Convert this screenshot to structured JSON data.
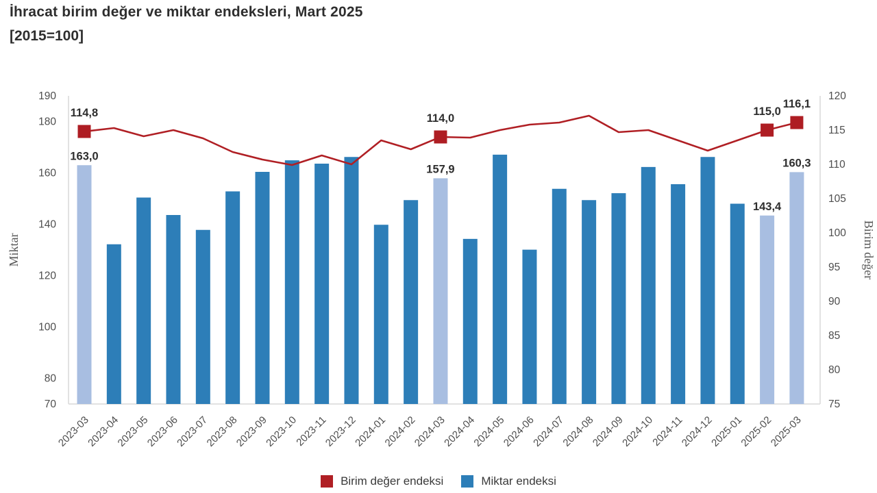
{
  "title": {
    "line1": "İhracat birim değer ve miktar endeksleri, Mart 2025",
    "line2": "[2015=100]"
  },
  "legend": [
    {
      "label": "Birim değer endeksi",
      "color": "#b01f24"
    },
    {
      "label": "Miktar endeksi",
      "color": "#2d7eb8"
    }
  ],
  "colors": {
    "bar": "#2d7eb8",
    "bar_highlight": "#a8bee1",
    "line": "#b01f24",
    "marker": "#ae1d23",
    "axis_line": "#d9d9d9",
    "tick_text": "#4d4d4d",
    "axis_title": "#595959",
    "data_label": "#2e2e2e"
  },
  "chart_data": {
    "type": "combo-bar-line",
    "title": "İhracat birim değer ve miktar endeksleri, Mart 2025 [2015=100]",
    "categories": [
      "2023-03",
      "2023-04",
      "2023-05",
      "2023-06",
      "2023-07",
      "2023-08",
      "2023-09",
      "2023-10",
      "2023-11",
      "2023-12",
      "2024-01",
      "2024-02",
      "2024-03",
      "2024-04",
      "2024-05",
      "2024-06",
      "2024-07",
      "2024-08",
      "2024-09",
      "2024-10",
      "2024-11",
      "2024-12",
      "2025-01",
      "2025-02",
      "2025-03"
    ],
    "series": [
      {
        "name": "Miktar endeksi",
        "type": "bar",
        "axis": "left",
        "values": [
          163.0,
          132.2,
          150.4,
          143.6,
          137.8,
          152.8,
          160.4,
          164.9,
          163.6,
          166.2,
          139.8,
          149.4,
          157.9,
          134.3,
          167.1,
          130.1,
          153.8,
          149.4,
          152.1,
          162.3,
          155.6,
          166.2,
          148.0,
          143.4,
          160.3
        ],
        "highlighted_indices": [
          0,
          12,
          23,
          24
        ]
      },
      {
        "name": "Birim değer endeksi",
        "type": "line",
        "axis": "right",
        "values": [
          114.8,
          115.3,
          114.1,
          115.0,
          113.8,
          111.8,
          110.7,
          109.9,
          111.3,
          110.0,
          113.5,
          112.2,
          114.0,
          113.9,
          115.0,
          115.8,
          116.1,
          117.1,
          114.7,
          115.0,
          113.5,
          112.0,
          113.5,
          115.0,
          116.1
        ],
        "marker_indices": [
          0,
          12,
          23,
          24
        ]
      }
    ],
    "annotations": [
      {
        "index": 0,
        "category": "2023-03",
        "bar_label": "163,0",
        "line_label": "114,8"
      },
      {
        "index": 12,
        "category": "2024-03",
        "bar_label": "157,9",
        "line_label": "114,0"
      },
      {
        "index": 23,
        "category": "2025-02",
        "bar_label": "143,4",
        "line_label": "115,0"
      },
      {
        "index": 24,
        "category": "2025-03",
        "bar_label": "160,3",
        "line_label": "116,1"
      }
    ],
    "left_axis": {
      "label": "Miktar",
      "range": [
        70,
        190
      ],
      "ticks": [
        190,
        180,
        160,
        140,
        120,
        100,
        80,
        70
      ]
    },
    "right_axis": {
      "label": "Birim değer",
      "range": [
        75,
        120
      ],
      "ticks": [
        120,
        115,
        110,
        105,
        100,
        95,
        90,
        85,
        80,
        75
      ]
    },
    "grid": false,
    "legend_position": "bottom-center"
  }
}
